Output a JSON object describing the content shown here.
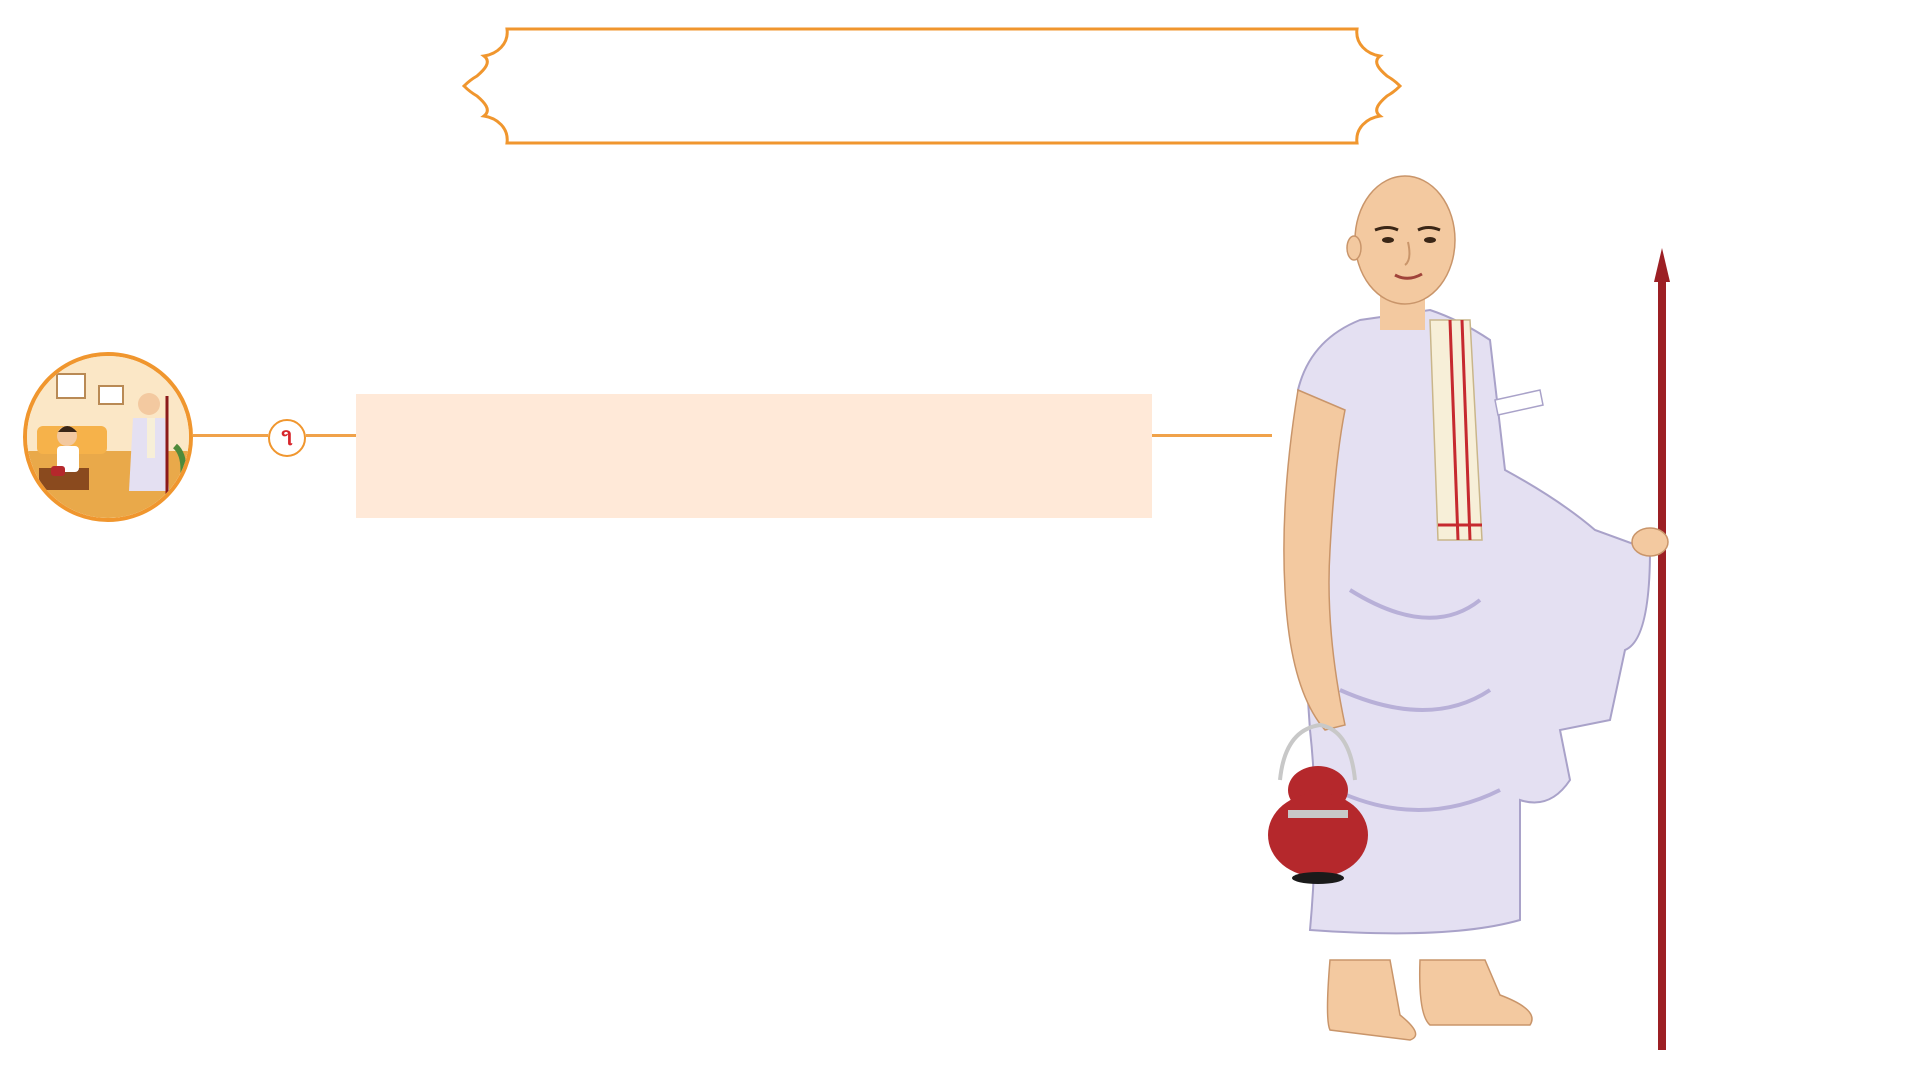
{
  "title": {
    "text": "",
    "frame_color": "#f0962e"
  },
  "step": {
    "number": "૧",
    "caption": "",
    "caption_bg": "#ffe9d8",
    "number_color": "#d7262c"
  },
  "thumbnail": {
    "description_icon": "scene-thumbnail-icon"
  },
  "figure": {
    "icon": "monk-figure-icon"
  },
  "colors": {
    "accent": "#f0962e",
    "connector": "#f0a24a"
  }
}
